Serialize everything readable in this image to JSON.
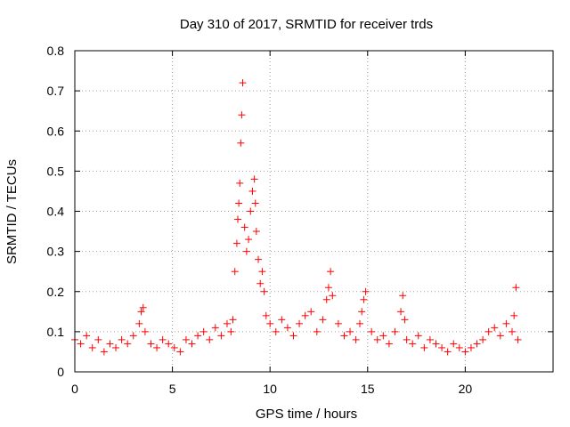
{
  "chart_data": {
    "type": "scatter",
    "title": "Day 310 of 2017, SRMTID for receiver trds",
    "xlabel": "GPS time / hours",
    "ylabel": "SRMTID / TECUs",
    "xlim": [
      0,
      24.5
    ],
    "ylim": [
      0,
      0.8
    ],
    "xticks": [
      0,
      5,
      10,
      15,
      20
    ],
    "xtick_labels": [
      "0",
      "5",
      "10",
      "15",
      "20"
    ],
    "yticks": [
      0,
      0.1,
      0.2,
      0.3,
      0.4,
      0.5,
      0.6,
      0.7,
      0.8
    ],
    "ytick_labels": [
      "0",
      "0.1",
      "0.2",
      "0.3",
      "0.4",
      "0.5",
      "0.6",
      "0.7",
      "0.8"
    ],
    "grid": true,
    "marker": "+",
    "color": "#ff0000",
    "series": [
      {
        "name": "SRMTID",
        "x": [
          0.0,
          0.3,
          0.6,
          0.9,
          1.2,
          1.5,
          1.8,
          2.1,
          2.4,
          2.7,
          3.0,
          3.3,
          3.4,
          3.5,
          3.6,
          3.9,
          4.2,
          4.5,
          4.8,
          5.1,
          5.4,
          5.7,
          6.0,
          6.3,
          6.6,
          6.9,
          7.2,
          7.5,
          7.8,
          8.0,
          8.1,
          8.2,
          8.3,
          8.35,
          8.4,
          8.45,
          8.5,
          8.55,
          8.6,
          8.7,
          8.8,
          8.9,
          9.0,
          9.1,
          9.2,
          9.25,
          9.3,
          9.4,
          9.5,
          9.6,
          9.7,
          9.8,
          10.0,
          10.3,
          10.6,
          10.9,
          11.2,
          11.5,
          11.8,
          12.1,
          12.4,
          12.7,
          12.9,
          13.0,
          13.1,
          13.2,
          13.5,
          13.8,
          14.1,
          14.4,
          14.6,
          14.7,
          14.8,
          14.9,
          15.2,
          15.5,
          15.8,
          16.1,
          16.4,
          16.7,
          16.8,
          16.9,
          17.0,
          17.3,
          17.6,
          17.9,
          18.2,
          18.5,
          18.8,
          19.1,
          19.4,
          19.7,
          20.0,
          20.3,
          20.6,
          20.9,
          21.2,
          21.5,
          21.8,
          22.1,
          22.4,
          22.5,
          22.6,
          22.7
        ],
        "y": [
          0.08,
          0.07,
          0.09,
          0.06,
          0.08,
          0.05,
          0.07,
          0.06,
          0.08,
          0.07,
          0.09,
          0.12,
          0.15,
          0.16,
          0.1,
          0.07,
          0.06,
          0.08,
          0.07,
          0.06,
          0.05,
          0.08,
          0.07,
          0.09,
          0.1,
          0.08,
          0.11,
          0.09,
          0.12,
          0.1,
          0.13,
          0.25,
          0.32,
          0.38,
          0.42,
          0.47,
          0.57,
          0.64,
          0.72,
          0.36,
          0.3,
          0.33,
          0.4,
          0.45,
          0.48,
          0.42,
          0.35,
          0.28,
          0.22,
          0.25,
          0.2,
          0.14,
          0.12,
          0.1,
          0.13,
          0.11,
          0.09,
          0.12,
          0.14,
          0.15,
          0.1,
          0.13,
          0.18,
          0.21,
          0.25,
          0.19,
          0.12,
          0.09,
          0.1,
          0.08,
          0.12,
          0.15,
          0.18,
          0.2,
          0.1,
          0.08,
          0.09,
          0.07,
          0.1,
          0.15,
          0.19,
          0.13,
          0.08,
          0.07,
          0.09,
          0.06,
          0.08,
          0.07,
          0.06,
          0.05,
          0.07,
          0.06,
          0.05,
          0.06,
          0.07,
          0.08,
          0.1,
          0.11,
          0.09,
          0.12,
          0.1,
          0.14,
          0.21,
          0.08
        ]
      }
    ]
  }
}
